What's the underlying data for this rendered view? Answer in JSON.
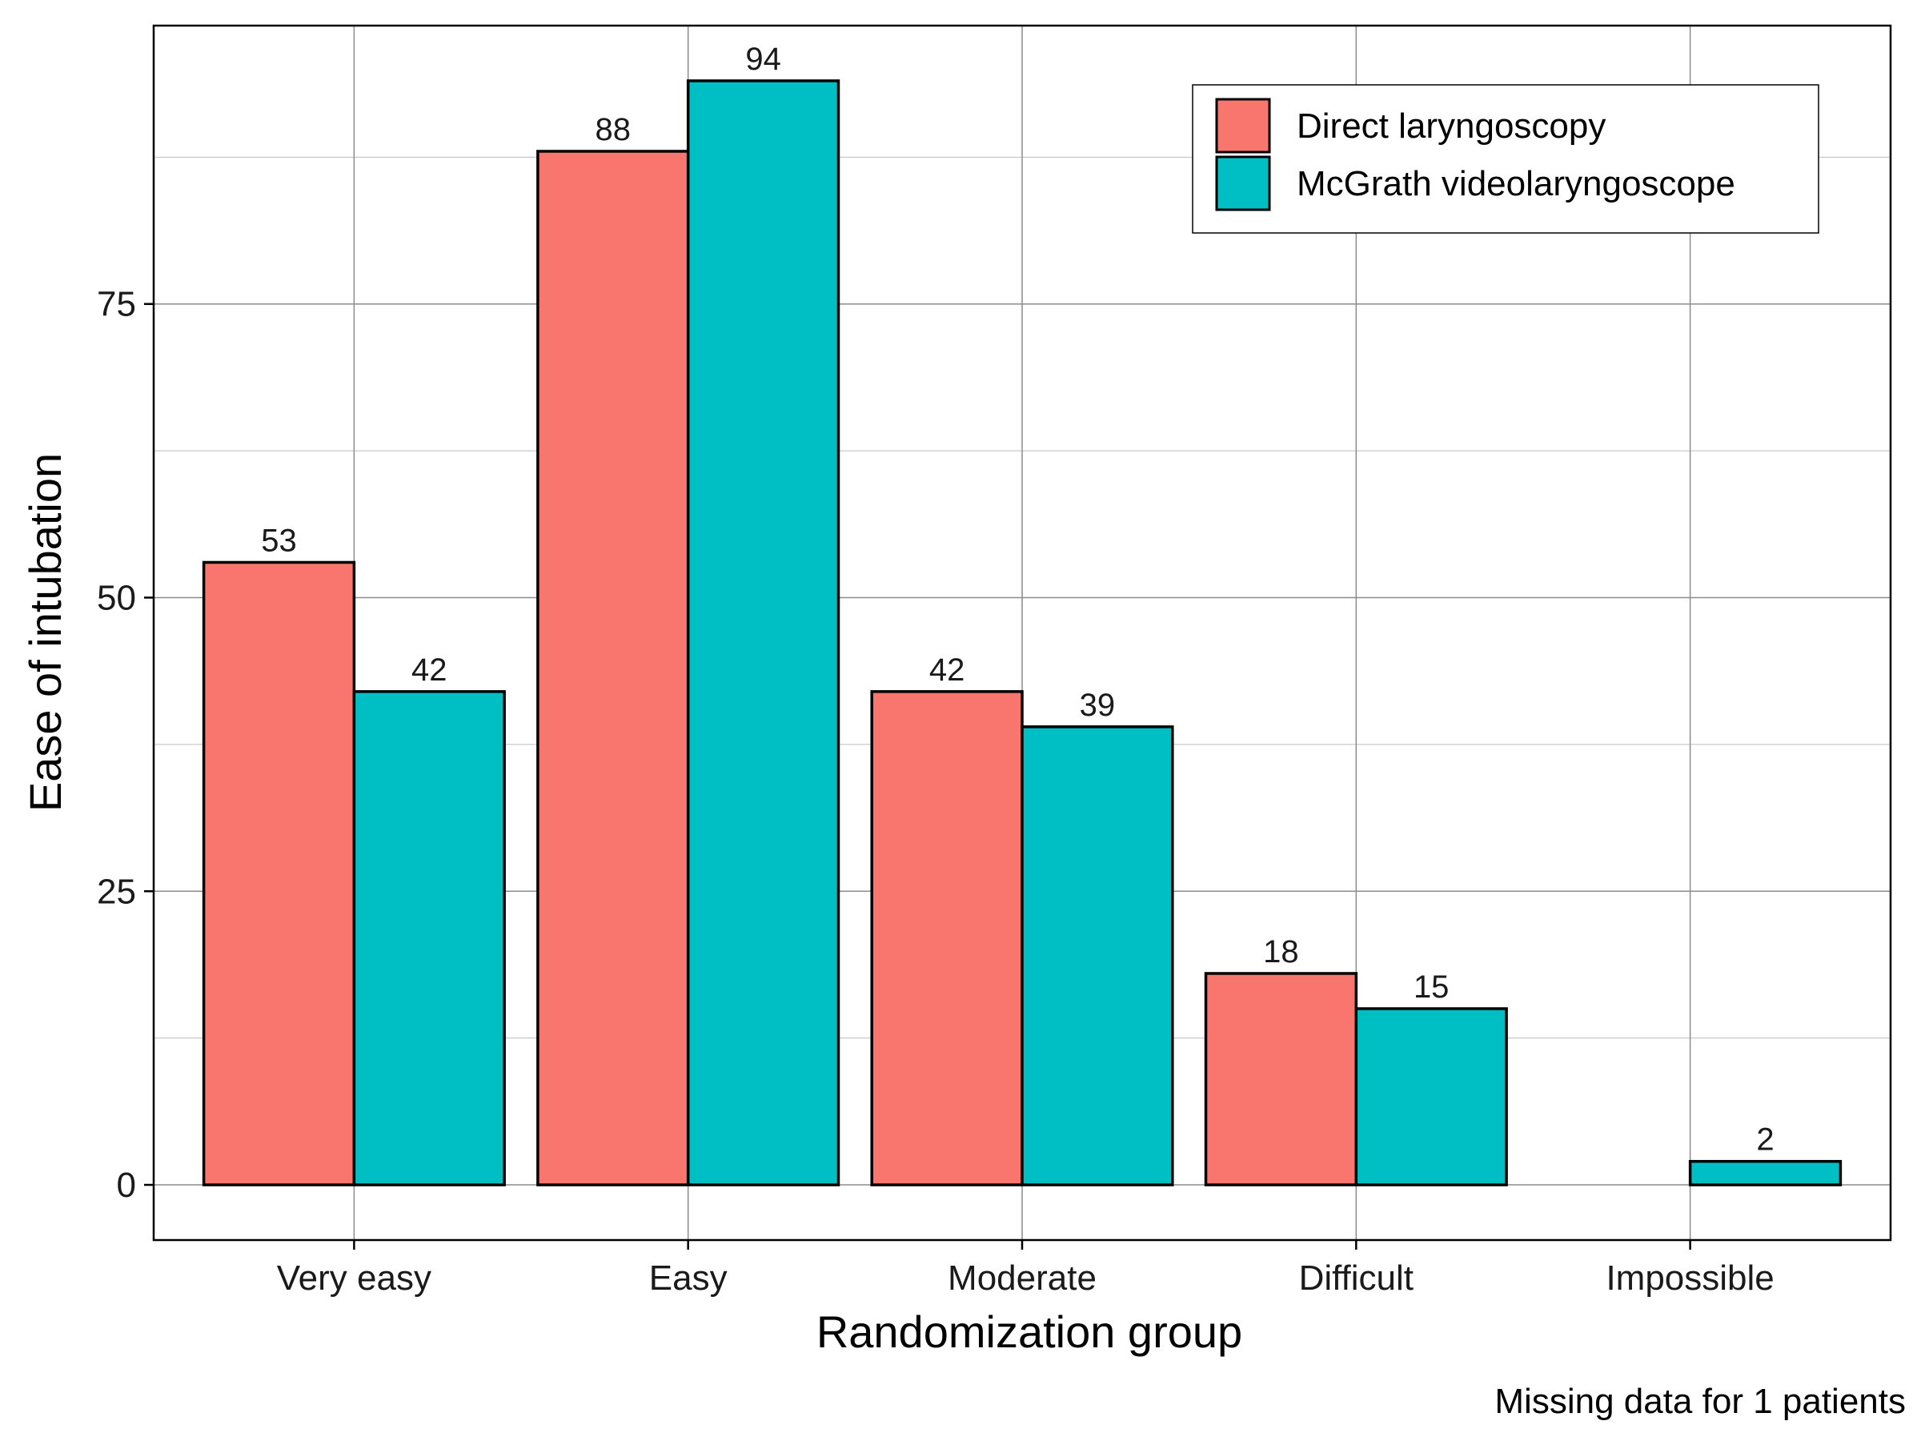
{
  "chart_data": {
    "type": "bar",
    "categories": [
      "Very easy",
      "Easy",
      "Moderate",
      "Difficult",
      "Impossible"
    ],
    "series": [
      {
        "name": "Direct laryngoscopy",
        "color": "#F8766D",
        "values": [
          53,
          88,
          42,
          18,
          null
        ]
      },
      {
        "name": "McGrath videolaryngoscope",
        "color": "#00BFC4",
        "values": [
          42,
          94,
          39,
          15,
          2
        ]
      }
    ],
    "xlabel": "Randomization group",
    "ylabel": "Ease of intubation",
    "yticks": [
      0,
      25,
      50,
      75
    ],
    "ylim": [
      -4.7,
      98.7
    ],
    "grid": true,
    "legend_position": "top-right",
    "caption": "Missing data for 1 patients"
  }
}
